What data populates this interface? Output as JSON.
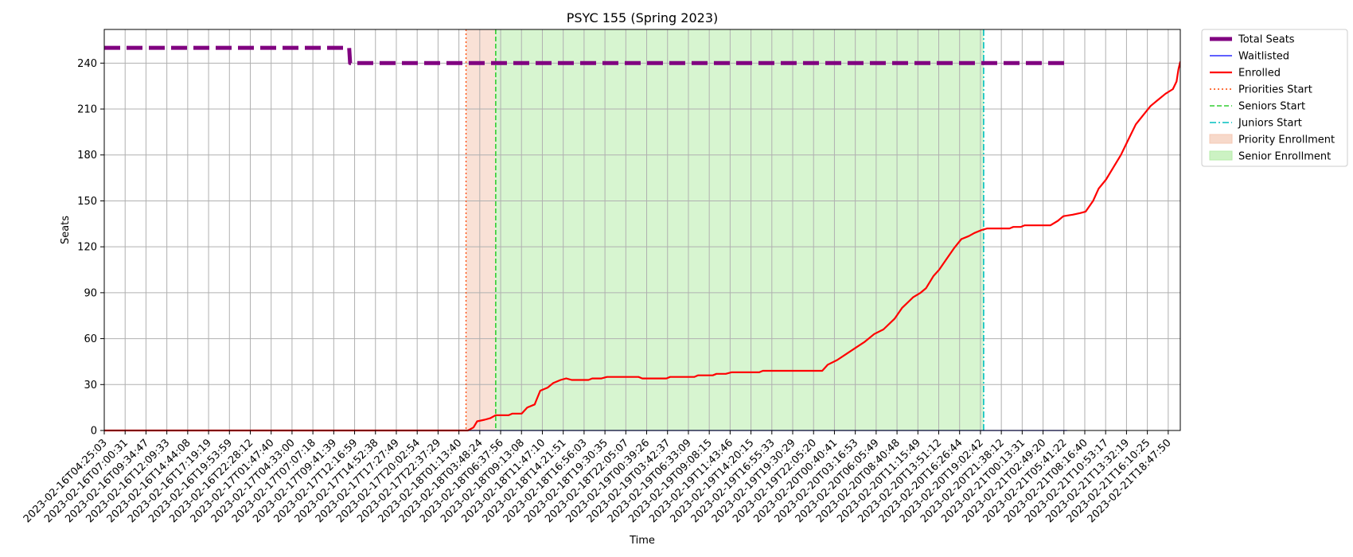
{
  "chart_data": {
    "type": "line",
    "title": "PSYC 155 (Spring 2023)",
    "xlabel": "Time",
    "ylabel": "Seats",
    "ylim": [
      0,
      262
    ],
    "yticks": [
      0,
      30,
      60,
      90,
      120,
      150,
      180,
      210,
      240
    ],
    "grid": true,
    "legend_placement": "outside-top-right",
    "x_tick_labels": [
      "2023-02-16T04:25:03",
      "2023-02-16T07:00:31",
      "2023-02-16T09:34:47",
      "2023-02-16T12:09:33",
      "2023-02-16T14:44:08",
      "2023-02-16T17:19:19",
      "2023-02-16T19:53:59",
      "2023-02-16T22:28:12",
      "2023-02-17T01:47:40",
      "2023-02-17T04:33:00",
      "2023-02-17T07:07:18",
      "2023-02-17T09:41:39",
      "2023-02-17T12:16:59",
      "2023-02-17T14:52:38",
      "2023-02-17T17:27:49",
      "2023-02-17T20:02:54",
      "2023-02-17T22:37:29",
      "2023-02-18T01:13:40",
      "2023-02-18T03:48:24",
      "2023-02-18T06:37:56",
      "2023-02-18T09:13:08",
      "2023-02-18T11:47:10",
      "2023-02-18T14:21:51",
      "2023-02-18T16:56:03",
      "2023-02-18T19:30:35",
      "2023-02-18T22:05:07",
      "2023-02-19T00:39:26",
      "2023-02-19T03:42:37",
      "2023-02-19T06:33:09",
      "2023-02-19T09:08:15",
      "2023-02-19T11:43:46",
      "2023-02-19T14:20:15",
      "2023-02-19T16:55:33",
      "2023-02-19T19:30:29",
      "2023-02-19T22:05:20",
      "2023-02-20T00:40:41",
      "2023-02-20T03:16:53",
      "2023-02-20T06:05:49",
      "2023-02-20T08:40:48",
      "2023-02-20T11:15:49",
      "2023-02-20T13:51:12",
      "2023-02-20T16:26:44",
      "2023-02-20T19:02:42",
      "2023-02-20T21:38:12",
      "2023-02-21T00:13:31",
      "2023-02-21T02:49:20",
      "2023-02-21T05:41:22",
      "2023-02-21T08:16:40",
      "2023-02-21T10:53:17",
      "2023-02-21T13:32:19",
      "2023-02-21T16:10:25",
      "2023-02-21T18:47:50"
    ],
    "series": [
      {
        "name": "Total Seats",
        "color": "#800080",
        "style": "dashed",
        "points": [
          [
            0,
            250
          ],
          [
            13.2,
            250
          ],
          [
            13.25,
            240
          ],
          [
            51.9,
            240
          ]
        ]
      },
      {
        "name": "Waitlisted",
        "color": "#0000ff",
        "style": "solid",
        "points": [
          [
            0,
            0
          ],
          [
            51.9,
            0
          ]
        ]
      },
      {
        "name": "Enrolled",
        "color": "#ff0000",
        "style": "solid",
        "points": [
          [
            0,
            0
          ],
          [
            19.6,
            0
          ],
          [
            19.9,
            2
          ],
          [
            20.1,
            6
          ],
          [
            20.5,
            7
          ],
          [
            20.8,
            8
          ],
          [
            21.1,
            10
          ],
          [
            21.8,
            10
          ],
          [
            22.0,
            11
          ],
          [
            22.5,
            11
          ],
          [
            22.8,
            15
          ],
          [
            23.2,
            17
          ],
          [
            23.3,
            20
          ],
          [
            23.5,
            26
          ],
          [
            23.9,
            28
          ],
          [
            24.2,
            31
          ],
          [
            24.6,
            33
          ],
          [
            24.9,
            34
          ],
          [
            25.2,
            33
          ],
          [
            26.1,
            33
          ],
          [
            26.3,
            34
          ],
          [
            26.8,
            34
          ],
          [
            27.1,
            35
          ],
          [
            28.8,
            35
          ],
          [
            29.0,
            34
          ],
          [
            30.3,
            34
          ],
          [
            30.5,
            35
          ],
          [
            31.8,
            35
          ],
          [
            32.0,
            36
          ],
          [
            32.8,
            36
          ],
          [
            33.0,
            37
          ],
          [
            33.5,
            37
          ],
          [
            33.8,
            38
          ],
          [
            35.3,
            38
          ],
          [
            35.5,
            39
          ],
          [
            38.7,
            39
          ],
          [
            39.0,
            43
          ],
          [
            39.5,
            46
          ],
          [
            40.0,
            50
          ],
          [
            40.5,
            54
          ],
          [
            41.0,
            58
          ],
          [
            41.5,
            63
          ],
          [
            42.0,
            66
          ],
          [
            42.6,
            73
          ],
          [
            43.0,
            80
          ],
          [
            43.6,
            87
          ],
          [
            44.0,
            90
          ],
          [
            44.3,
            93
          ],
          [
            44.7,
            101
          ],
          [
            45.0,
            105
          ],
          [
            45.4,
            112
          ],
          [
            45.8,
            119
          ],
          [
            46.2,
            125
          ],
          [
            46.6,
            127
          ],
          [
            46.9,
            129
          ],
          [
            47.3,
            131
          ],
          [
            47.6,
            132
          ],
          [
            48.8,
            132
          ],
          [
            49.0,
            133
          ],
          [
            49.4,
            133
          ],
          [
            49.6,
            134
          ],
          [
            51.0,
            134
          ],
          [
            51.4,
            137
          ],
          [
            51.7,
            140
          ],
          [
            52.2,
            141
          ],
          [
            52.6,
            142
          ],
          [
            52.9,
            143
          ],
          [
            53.3,
            150
          ],
          [
            53.6,
            158
          ],
          [
            54.0,
            164
          ],
          [
            54.4,
            172
          ],
          [
            54.8,
            180
          ],
          [
            55.2,
            190
          ],
          [
            55.6,
            200
          ],
          [
            56.0,
            206
          ],
          [
            56.4,
            212
          ],
          [
            56.8,
            216
          ],
          [
            57.2,
            220
          ],
          [
            57.6,
            223
          ],
          [
            57.8,
            228
          ],
          [
            57.9,
            236
          ],
          [
            58.0,
            241
          ]
        ]
      }
    ],
    "reference_lines": [
      {
        "name": "Priorities Start",
        "x": 19.5,
        "color": "#ff4500",
        "style": "dotted"
      },
      {
        "name": "Seniors Start",
        "x": 21.1,
        "color": "#32cd32",
        "style": "dashed"
      },
      {
        "name": "Juniors Start",
        "x": 47.4,
        "color": "#00bfbf",
        "style": "dashdot"
      }
    ],
    "shaded_regions": [
      {
        "name": "Priority Enrollment",
        "x_start": 19.5,
        "x_end": 21.1,
        "color": "#f4c9b4"
      },
      {
        "name": "Senior Enrollment",
        "x_start": 21.1,
        "x_end": 47.4,
        "color": "#b6ecaa"
      }
    ],
    "legend": [
      "Total Seats",
      "Waitlisted",
      "Enrolled",
      "Priorities Start",
      "Seniors Start",
      "Juniors Start",
      "Priority Enrollment",
      "Senior Enrollment"
    ]
  }
}
